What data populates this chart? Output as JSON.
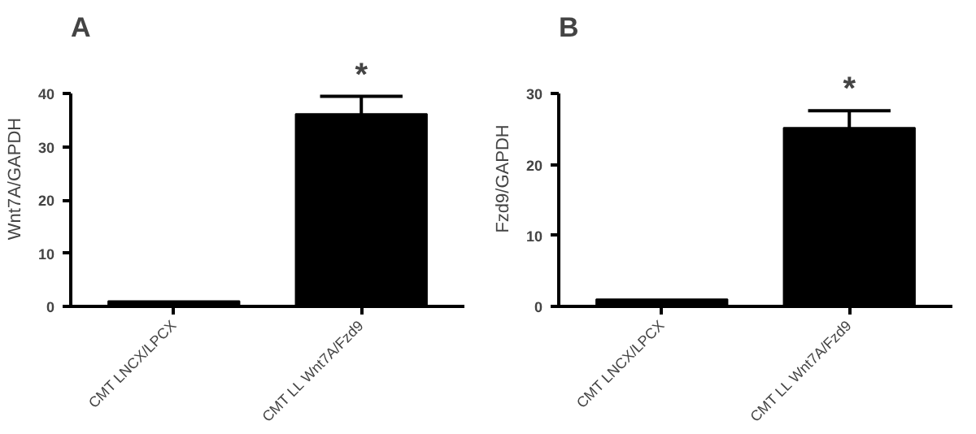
{
  "chart_data": [
    {
      "type": "bar",
      "title": "A",
      "ylabel": "Wnt7A/GAPDH",
      "categories": [
        "CMT LNCX/LPCX",
        "CMT LL Wnt7A/Fzd9"
      ],
      "values": [
        1.0,
        36.2
      ],
      "errors": [
        null,
        3.3
      ],
      "color": "#000000",
      "ylim": [
        0,
        40
      ],
      "yticks": [
        0,
        10,
        20,
        30,
        40
      ],
      "grid": false,
      "annotations": [
        "*"
      ]
    },
    {
      "type": "bar",
      "title": "B",
      "ylabel": "Fzd9/GAPDH",
      "categories": [
        "CMT LNCX/LPCX",
        "CMT LL Wnt7A/Fzd9"
      ],
      "values": [
        1.0,
        25.2
      ],
      "errors": [
        null,
        2.4
      ],
      "color": "#000000",
      "ylim": [
        0,
        30
      ],
      "yticks": [
        0,
        10,
        20,
        30
      ],
      "grid": false,
      "annotations": [
        "*"
      ]
    }
  ]
}
